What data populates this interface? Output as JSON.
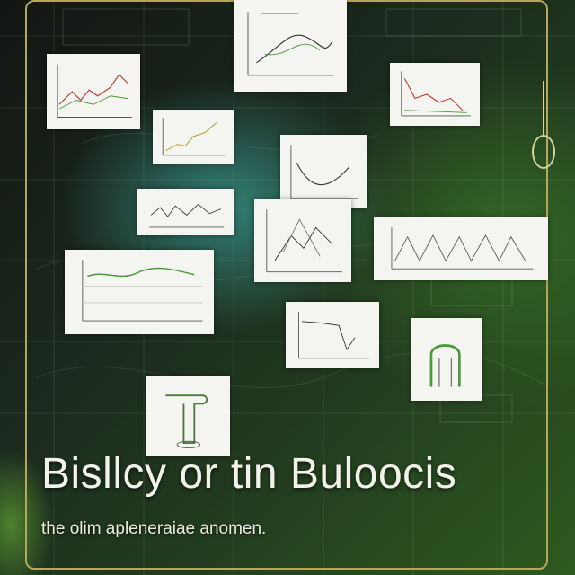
{
  "headline": "Bisllcy or tin Buloocis",
  "subline": "the olim apleneraiae  anomen.",
  "colors": {
    "frame": "#b6a65a",
    "card": "#f4f4f0",
    "plot_line_green": "#4a9a3a",
    "plot_line_red": "#c0392b",
    "text": "#f2f2ea"
  },
  "icons": [
    "gear-icon",
    "plant-sketch-icon",
    "pipe-sketch-icon"
  ]
}
